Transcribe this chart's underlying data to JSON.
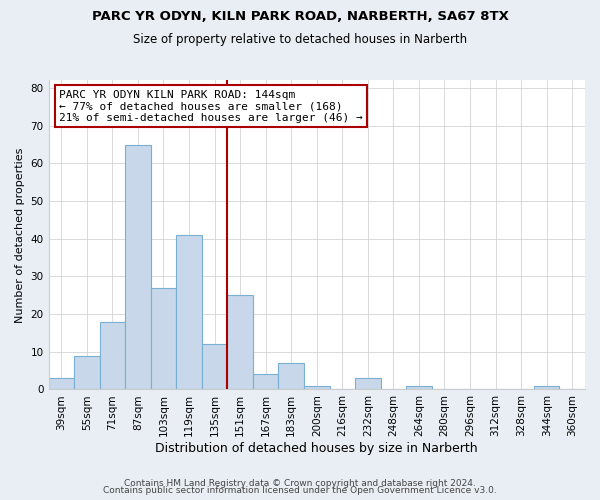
{
  "title1": "PARC YR ODYN, KILN PARK ROAD, NARBERTH, SA67 8TX",
  "title2": "Size of property relative to detached houses in Narberth",
  "xlabel": "Distribution of detached houses by size in Narberth",
  "ylabel": "Number of detached properties",
  "footer1": "Contains HM Land Registry data © Crown copyright and database right 2024.",
  "footer2": "Contains public sector information licensed under the Open Government Licence v3.0.",
  "bin_labels": [
    "39sqm",
    "55sqm",
    "71sqm",
    "87sqm",
    "103sqm",
    "119sqm",
    "135sqm",
    "151sqm",
    "167sqm",
    "183sqm",
    "200sqm",
    "216sqm",
    "232sqm",
    "248sqm",
    "264sqm",
    "280sqm",
    "296sqm",
    "312sqm",
    "328sqm",
    "344sqm",
    "360sqm"
  ],
  "bar_heights": [
    3,
    9,
    18,
    65,
    27,
    41,
    12,
    25,
    4,
    7,
    1,
    0,
    3,
    0,
    1,
    0,
    0,
    0,
    0,
    1,
    0
  ],
  "bar_color": "#c8d8ea",
  "bar_edge_color": "#7aafd4",
  "property_line_color": "#aa0000",
  "property_line_bin": 7,
  "annotation_text": "PARC YR ODYN KILN PARK ROAD: 144sqm\n← 77% of detached houses are smaller (168)\n21% of semi-detached houses are larger (46) →",
  "annotation_box_color": "#ffffff",
  "annotation_box_edge": "#aa0000",
  "ylim": [
    0,
    82
  ],
  "yticks": [
    0,
    10,
    20,
    30,
    40,
    50,
    60,
    70,
    80
  ],
  "bg_color": "#e8eef4",
  "plot_bg_color": "#ffffff",
  "title_fontsize": 9.5,
  "subtitle_fontsize": 8.5,
  "xlabel_fontsize": 9,
  "ylabel_fontsize": 8,
  "tick_fontsize": 7.5,
  "footer_fontsize": 6.5
}
